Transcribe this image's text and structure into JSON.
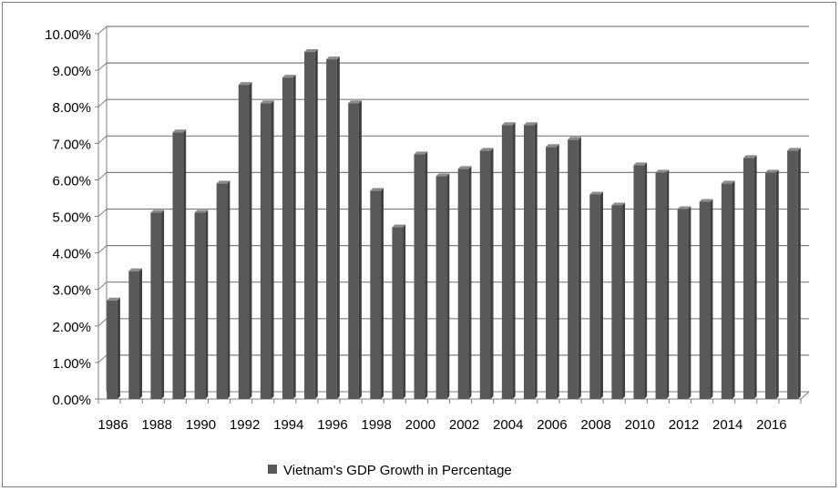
{
  "chart_data": {
    "type": "bar",
    "title": "",
    "xlabel": "",
    "ylabel": "",
    "ylim": [
      0,
      10
    ],
    "yticks": [
      "0.00%",
      "1.00%",
      "2.00%",
      "3.00%",
      "4.00%",
      "5.00%",
      "6.00%",
      "7.00%",
      "8.00%",
      "9.00%",
      "10.00%"
    ],
    "x_tick_labels": [
      "1986",
      "1988",
      "1990",
      "1992",
      "1994",
      "1996",
      "1998",
      "2000",
      "2002",
      "2004",
      "2006",
      "2008",
      "2010",
      "2012",
      "2014",
      "2016"
    ],
    "categories": [
      "1986",
      "1987",
      "1988",
      "1989",
      "1990",
      "1991",
      "1992",
      "1993",
      "1994",
      "1995",
      "1996",
      "1997",
      "1998",
      "1999",
      "2000",
      "2001",
      "2002",
      "2003",
      "2004",
      "2005",
      "2006",
      "2007",
      "2008",
      "2009",
      "2010",
      "2011",
      "2012",
      "2013",
      "2014",
      "2015",
      "2016",
      "2017"
    ],
    "series": [
      {
        "name": "Vietnam's GDP Growth in Percentage",
        "color": "#595959",
        "values": [
          2.7,
          3.5,
          5.1,
          7.3,
          5.1,
          5.9,
          8.6,
          8.1,
          8.8,
          9.5,
          9.3,
          8.1,
          5.7,
          4.7,
          6.7,
          6.1,
          6.3,
          6.8,
          7.5,
          7.5,
          6.9,
          7.1,
          5.6,
          5.3,
          6.4,
          6.2,
          5.2,
          5.4,
          5.9,
          6.6,
          6.2,
          6.8
        ]
      }
    ],
    "grid": true,
    "legend_position": "bottom"
  }
}
